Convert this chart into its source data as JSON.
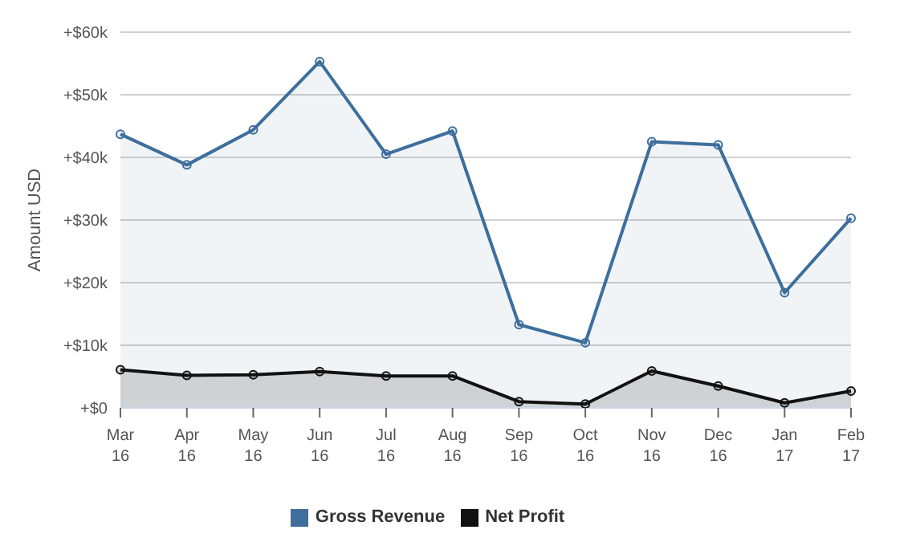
{
  "chart_data": {
    "type": "area",
    "ylabel": "Amount USD",
    "categories": [
      "Mar\n16",
      "Apr\n16",
      "May\n16",
      "Jun\n16",
      "Jul\n16",
      "Aug\n16",
      "Sep\n16",
      "Oct\n16",
      "Nov\n16",
      "Dec\n16",
      "Jan\n17",
      "Feb\n17"
    ],
    "series": [
      {
        "name": "Gross Revenue",
        "color": "#3d6e9c",
        "values": [
          43.7,
          38.8,
          44.4,
          55.3,
          40.5,
          44.2,
          13.3,
          10.4,
          42.5,
          42,
          18.4,
          30.3
        ]
      },
      {
        "name": "Net Profit",
        "color": "#111111",
        "values": [
          6.1,
          5.2,
          5.3,
          5.8,
          5.1,
          5.1,
          1,
          0.6,
          5.9,
          3.5,
          0.8,
          2.7
        ]
      }
    ],
    "ylim": [
      0,
      60
    ],
    "yticks": [
      {
        "value": 0,
        "label": "+$0"
      },
      {
        "value": 10,
        "label": "+$10k"
      },
      {
        "value": 20,
        "label": "+$20k"
      },
      {
        "value": 30,
        "label": "+$30k"
      },
      {
        "value": 40,
        "label": "+$40k"
      },
      {
        "value": 50,
        "label": "+$50k"
      },
      {
        "value": 60,
        "label": "+$60k"
      }
    ],
    "grid": "y",
    "legend": "bottom",
    "marker": "circle",
    "line_style": "solid"
  }
}
